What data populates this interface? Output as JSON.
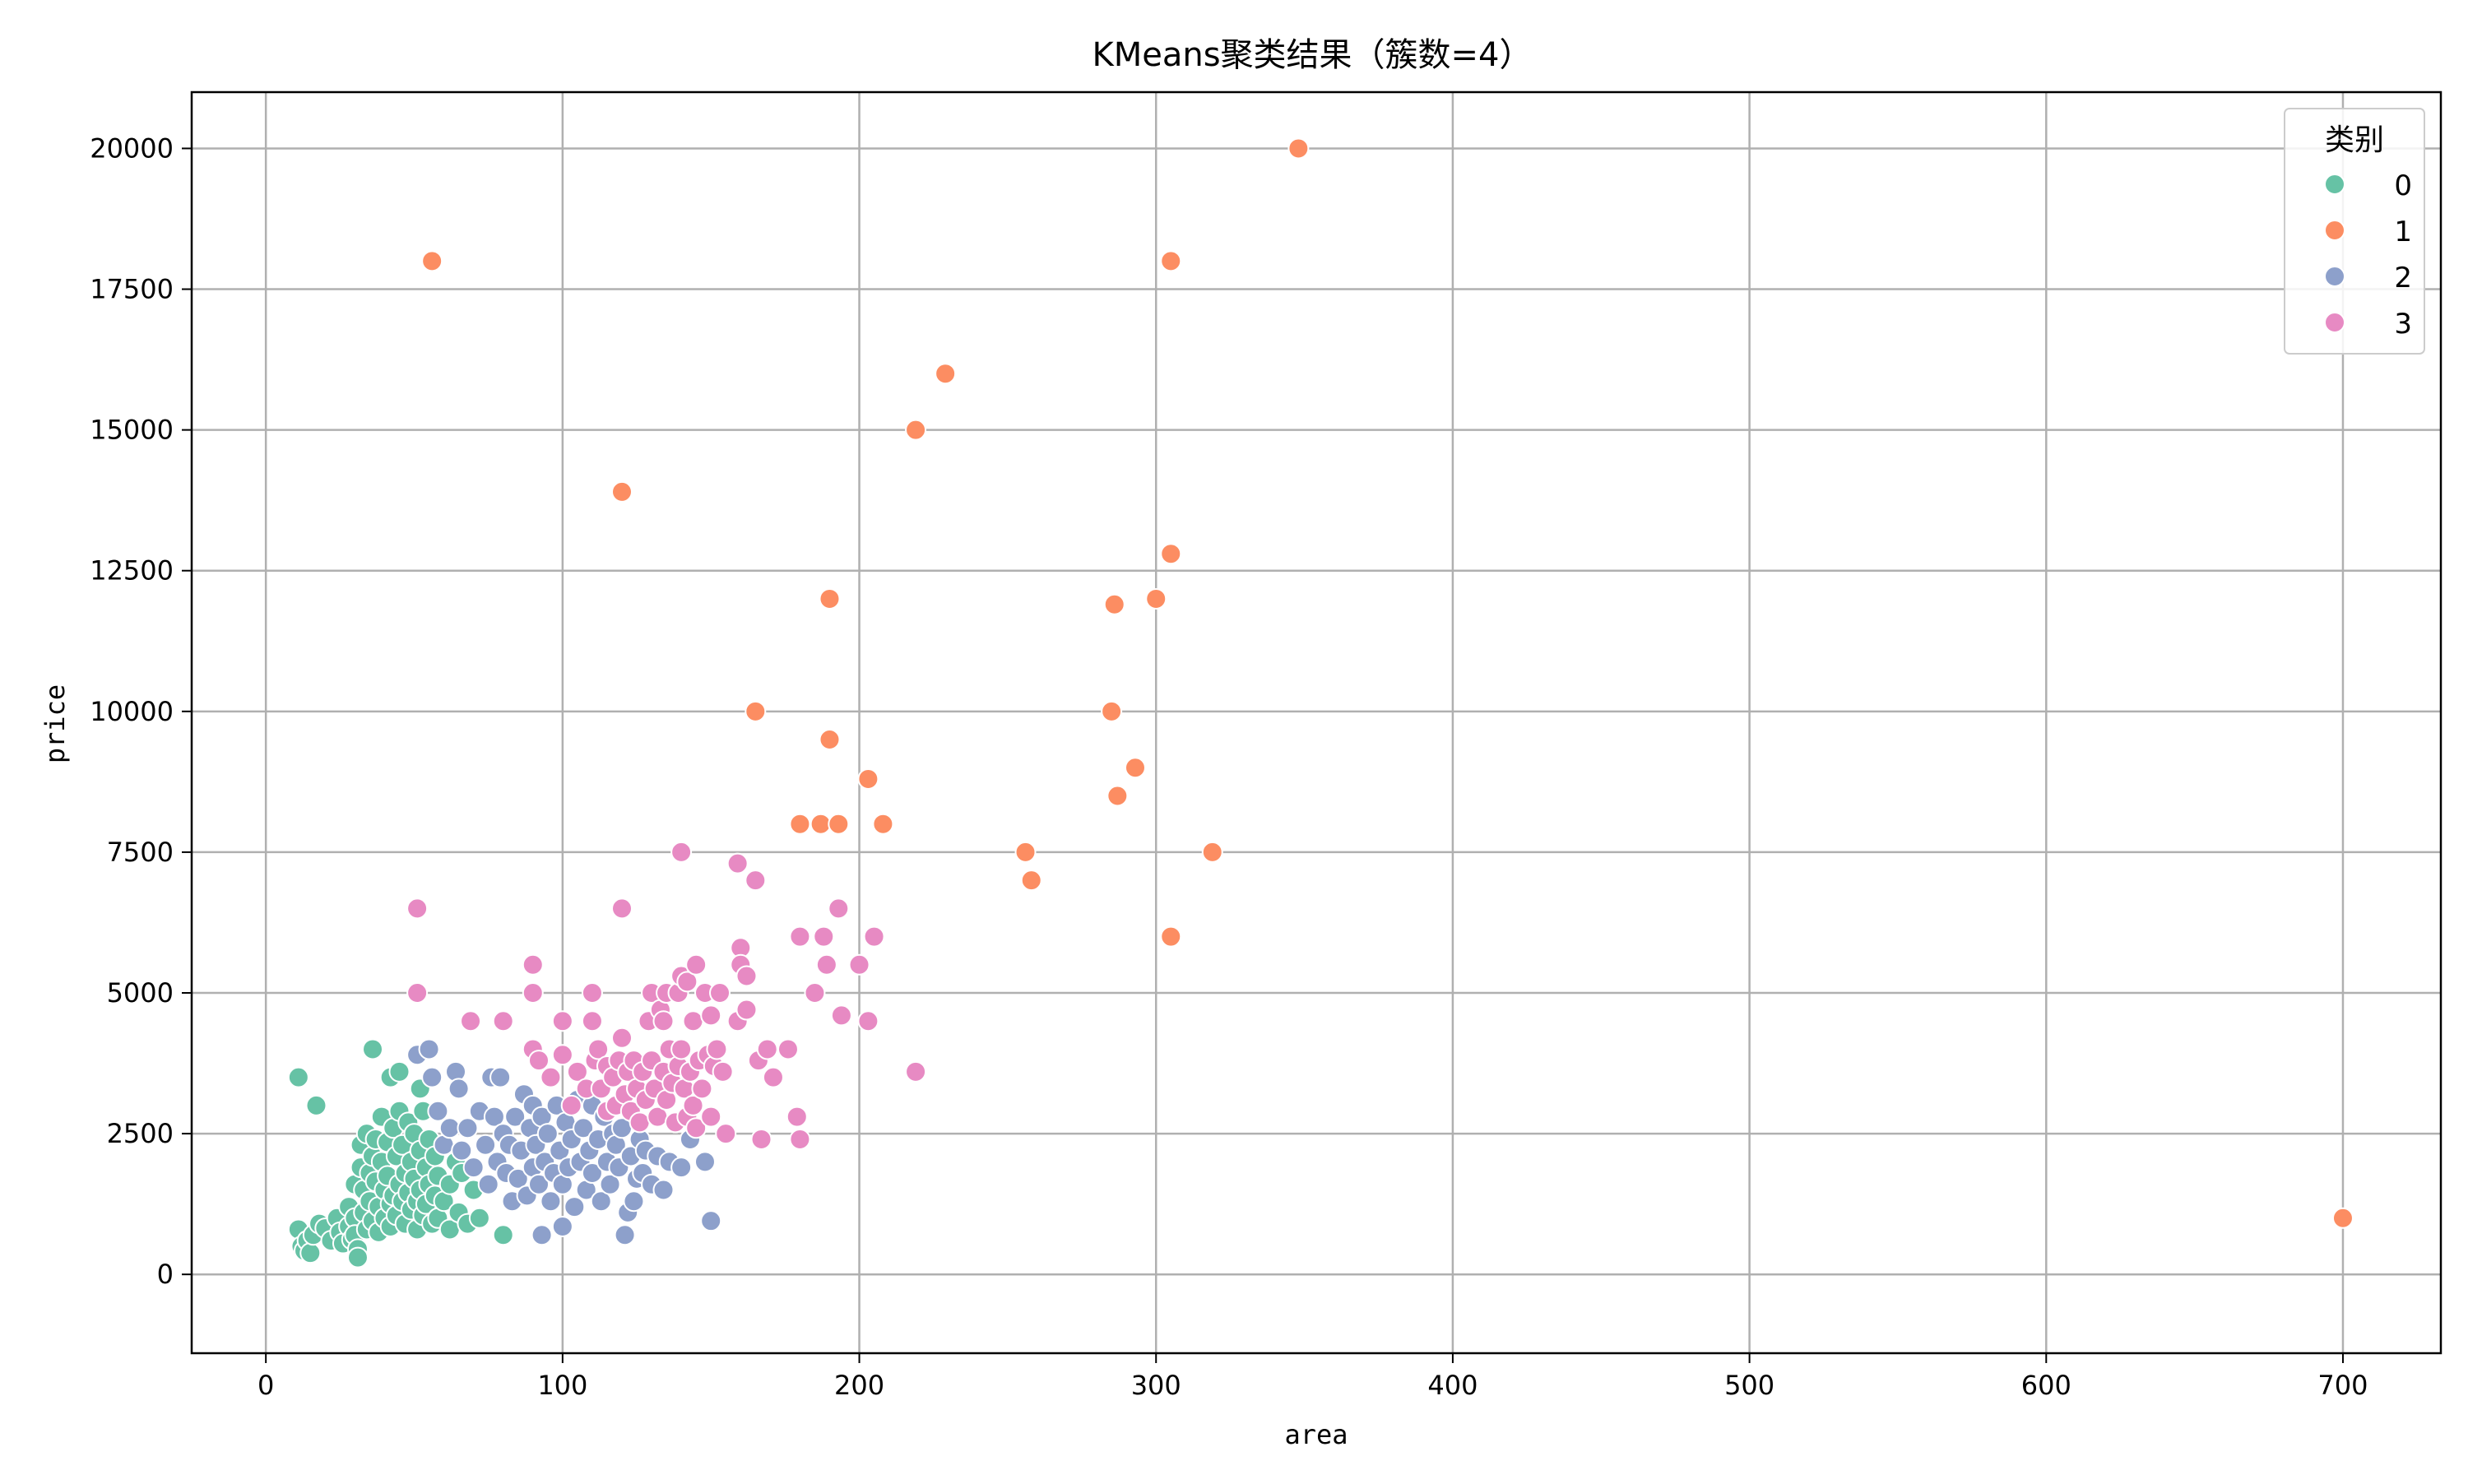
{
  "chart_data": {
    "type": "scatter",
    "title": "KMeans聚类结果（簇数=4）",
    "xlabel": "area",
    "ylabel": "price",
    "xlim": [
      -25,
      733
    ],
    "ylim": [
      -1400,
      21000
    ],
    "xticks": [
      0,
      100,
      200,
      300,
      400,
      500,
      600,
      700
    ],
    "yticks": [
      0,
      2500,
      5000,
      7500,
      10000,
      12500,
      15000,
      17500,
      20000
    ],
    "grid": true,
    "legend": {
      "title": "类别",
      "placement": "top-right"
    },
    "series": [
      {
        "name": "0",
        "color": "#66c2a5",
        "points": [
          [
            11,
            800
          ],
          [
            12,
            500
          ],
          [
            13,
            420
          ],
          [
            14,
            600
          ],
          [
            15,
            380
          ],
          [
            16,
            700
          ],
          [
            18,
            900
          ],
          [
            20,
            820
          ],
          [
            22,
            600
          ],
          [
            24,
            1000
          ],
          [
            25,
            750
          ],
          [
            26,
            550
          ],
          [
            28,
            1200
          ],
          [
            28,
            850
          ],
          [
            29,
            620
          ],
          [
            30,
            1600
          ],
          [
            30,
            1000
          ],
          [
            30,
            700
          ],
          [
            31,
            450
          ],
          [
            31,
            300
          ],
          [
            32,
            2300
          ],
          [
            32,
            1900
          ],
          [
            33,
            1500
          ],
          [
            33,
            1100
          ],
          [
            34,
            2500
          ],
          [
            34,
            800
          ],
          [
            35,
            1800
          ],
          [
            35,
            1300
          ],
          [
            36,
            2100
          ],
          [
            36,
            950
          ],
          [
            37,
            2400
          ],
          [
            37,
            1650
          ],
          [
            38,
            1200
          ],
          [
            38,
            750
          ],
          [
            39,
            2800
          ],
          [
            39,
            2000
          ],
          [
            40,
            1500
          ],
          [
            40,
            1000
          ],
          [
            41,
            2350
          ],
          [
            41,
            1750
          ],
          [
            42,
            1250
          ],
          [
            42,
            850
          ],
          [
            43,
            2600
          ],
          [
            43,
            1400
          ],
          [
            44,
            2100
          ],
          [
            44,
            1050
          ],
          [
            45,
            2900
          ],
          [
            45,
            1600
          ],
          [
            46,
            2300
          ],
          [
            46,
            1300
          ],
          [
            47,
            1800
          ],
          [
            47,
            900
          ],
          [
            48,
            2700
          ],
          [
            48,
            1450
          ],
          [
            49,
            2000
          ],
          [
            49,
            1150
          ],
          [
            50,
            2500
          ],
          [
            50,
            1700
          ],
          [
            51,
            1300
          ],
          [
            51,
            800
          ],
          [
            52,
            2200
          ],
          [
            52,
            1500
          ],
          [
            53,
            2900
          ],
          [
            53,
            1050
          ],
          [
            54,
            1900
          ],
          [
            54,
            1250
          ],
          [
            55,
            2400
          ],
          [
            55,
            1600
          ],
          [
            56,
            900
          ],
          [
            57,
            2100
          ],
          [
            57,
            1400
          ],
          [
            58,
            1750
          ],
          [
            58,
            1000
          ],
          [
            60,
            2300
          ],
          [
            60,
            1300
          ],
          [
            62,
            1600
          ],
          [
            62,
            800
          ],
          [
            64,
            2000
          ],
          [
            65,
            1100
          ],
          [
            66,
            1800
          ],
          [
            68,
            900
          ],
          [
            70,
            1500
          ],
          [
            72,
            1000
          ],
          [
            11,
            3500
          ],
          [
            17,
            3000
          ],
          [
            36,
            4000
          ],
          [
            42,
            3500
          ],
          [
            45,
            3600
          ],
          [
            52,
            3300
          ],
          [
            80,
            700
          ]
        ]
      },
      {
        "name": "1",
        "color": "#fc8d62",
        "points": [
          [
            56,
            18000
          ],
          [
            120,
            13900
          ],
          [
            165,
            10000
          ],
          [
            180,
            8000
          ],
          [
            187,
            8000
          ],
          [
            190,
            9500
          ],
          [
            190,
            12000
          ],
          [
            193,
            8000
          ],
          [
            203,
            8800
          ],
          [
            208,
            8000
          ],
          [
            219,
            15000
          ],
          [
            229,
            16000
          ],
          [
            256,
            7500
          ],
          [
            258,
            7000
          ],
          [
            285,
            10000
          ],
          [
            286,
            11900
          ],
          [
            287,
            8500
          ],
          [
            293,
            9000
          ],
          [
            300,
            12000
          ],
          [
            305,
            12800
          ],
          [
            305,
            18000
          ],
          [
            305,
            6000
          ],
          [
            319,
            7500
          ],
          [
            348,
            20000
          ],
          [
            700,
            1000
          ]
        ]
      },
      {
        "name": "2",
        "color": "#8da0cb",
        "points": [
          [
            51,
            3900
          ],
          [
            55,
            4000
          ],
          [
            56,
            3500
          ],
          [
            58,
            2900
          ],
          [
            60,
            2300
          ],
          [
            62,
            2600
          ],
          [
            64,
            3600
          ],
          [
            65,
            3300
          ],
          [
            66,
            2200
          ],
          [
            68,
            2600
          ],
          [
            70,
            1900
          ],
          [
            72,
            2900
          ],
          [
            74,
            2300
          ],
          [
            75,
            1600
          ],
          [
            76,
            3500
          ],
          [
            77,
            2800
          ],
          [
            78,
            2000
          ],
          [
            79,
            3500
          ],
          [
            80,
            2500
          ],
          [
            81,
            1800
          ],
          [
            82,
            2300
          ],
          [
            83,
            1300
          ],
          [
            84,
            2800
          ],
          [
            85,
            1700
          ],
          [
            86,
            2200
          ],
          [
            87,
            3200
          ],
          [
            88,
            1400
          ],
          [
            89,
            2600
          ],
          [
            90,
            3000
          ],
          [
            90,
            1900
          ],
          [
            91,
            2300
          ],
          [
            92,
            1600
          ],
          [
            93,
            2800
          ],
          [
            93,
            700
          ],
          [
            94,
            2000
          ],
          [
            95,
            2500
          ],
          [
            96,
            1300
          ],
          [
            97,
            1800
          ],
          [
            98,
            3000
          ],
          [
            99,
            2200
          ],
          [
            100,
            1600
          ],
          [
            100,
            850
          ],
          [
            101,
            2700
          ],
          [
            102,
            1900
          ],
          [
            103,
            2400
          ],
          [
            104,
            1200
          ],
          [
            105,
            3100
          ],
          [
            106,
            2000
          ],
          [
            107,
            2600
          ],
          [
            108,
            1500
          ],
          [
            109,
            2200
          ],
          [
            110,
            3000
          ],
          [
            110,
            1800
          ],
          [
            112,
            2400
          ],
          [
            113,
            1300
          ],
          [
            114,
            2800
          ],
          [
            115,
            2000
          ],
          [
            116,
            1600
          ],
          [
            117,
            2500
          ],
          [
            118,
            2300
          ],
          [
            119,
            1900
          ],
          [
            120,
            2600
          ],
          [
            121,
            700
          ],
          [
            122,
            1100
          ],
          [
            123,
            2100
          ],
          [
            124,
            1300
          ],
          [
            125,
            1700
          ],
          [
            126,
            2400
          ],
          [
            127,
            1800
          ],
          [
            128,
            2200
          ],
          [
            130,
            1600
          ],
          [
            132,
            2100
          ],
          [
            134,
            1500
          ],
          [
            136,
            2000
          ],
          [
            138,
            2700
          ],
          [
            140,
            1900
          ],
          [
            143,
            2400
          ],
          [
            148,
            2000
          ],
          [
            150,
            950
          ]
        ]
      },
      {
        "name": "3",
        "color": "#e78ac3",
        "points": [
          [
            51,
            6500
          ],
          [
            51,
            5000
          ],
          [
            69,
            4500
          ],
          [
            80,
            4500
          ],
          [
            90,
            5500
          ],
          [
            90,
            5000
          ],
          [
            90,
            4000
          ],
          [
            92,
            3800
          ],
          [
            96,
            3500
          ],
          [
            100,
            4500
          ],
          [
            100,
            3900
          ],
          [
            103,
            3000
          ],
          [
            105,
            3600
          ],
          [
            108,
            3300
          ],
          [
            110,
            5000
          ],
          [
            110,
            4500
          ],
          [
            111,
            3800
          ],
          [
            112,
            4000
          ],
          [
            113,
            3300
          ],
          [
            115,
            2900
          ],
          [
            115,
            3700
          ],
          [
            117,
            3500
          ],
          [
            118,
            3000
          ],
          [
            119,
            3800
          ],
          [
            120,
            6500
          ],
          [
            120,
            4200
          ],
          [
            121,
            3200
          ],
          [
            122,
            3600
          ],
          [
            123,
            2900
          ],
          [
            124,
            3800
          ],
          [
            125,
            3300
          ],
          [
            126,
            2700
          ],
          [
            127,
            3600
          ],
          [
            128,
            3100
          ],
          [
            129,
            4500
          ],
          [
            130,
            5000
          ],
          [
            130,
            3800
          ],
          [
            131,
            3300
          ],
          [
            132,
            2800
          ],
          [
            133,
            4700
          ],
          [
            134,
            4500
          ],
          [
            134,
            3600
          ],
          [
            135,
            5000
          ],
          [
            135,
            3100
          ],
          [
            136,
            4000
          ],
          [
            137,
            3400
          ],
          [
            138,
            2700
          ],
          [
            139,
            5000
          ],
          [
            139,
            3700
          ],
          [
            140,
            7500
          ],
          [
            140,
            5300
          ],
          [
            140,
            4000
          ],
          [
            141,
            3300
          ],
          [
            142,
            2800
          ],
          [
            142,
            5200
          ],
          [
            143,
            3600
          ],
          [
            144,
            4500
          ],
          [
            144,
            3000
          ],
          [
            145,
            5500
          ],
          [
            145,
            2600
          ],
          [
            146,
            3800
          ],
          [
            147,
            3300
          ],
          [
            148,
            5000
          ],
          [
            149,
            3900
          ],
          [
            150,
            4600
          ],
          [
            150,
            2800
          ],
          [
            151,
            3700
          ],
          [
            152,
            4000
          ],
          [
            153,
            5000
          ],
          [
            154,
            3600
          ],
          [
            155,
            2500
          ],
          [
            159,
            7300
          ],
          [
            159,
            4500
          ],
          [
            160,
            5800
          ],
          [
            160,
            5500
          ],
          [
            162,
            5300
          ],
          [
            162,
            4700
          ],
          [
            165,
            7000
          ],
          [
            166,
            3800
          ],
          [
            167,
            2400
          ],
          [
            169,
            4000
          ],
          [
            171,
            3500
          ],
          [
            176,
            4000
          ],
          [
            179,
            2800
          ],
          [
            180,
            6000
          ],
          [
            180,
            2400
          ],
          [
            185,
            5000
          ],
          [
            188,
            6000
          ],
          [
            189,
            5500
          ],
          [
            193,
            6500
          ],
          [
            194,
            4600
          ],
          [
            200,
            5500
          ],
          [
            203,
            4500
          ],
          [
            205,
            6000
          ],
          [
            219,
            3600
          ]
        ]
      }
    ]
  }
}
